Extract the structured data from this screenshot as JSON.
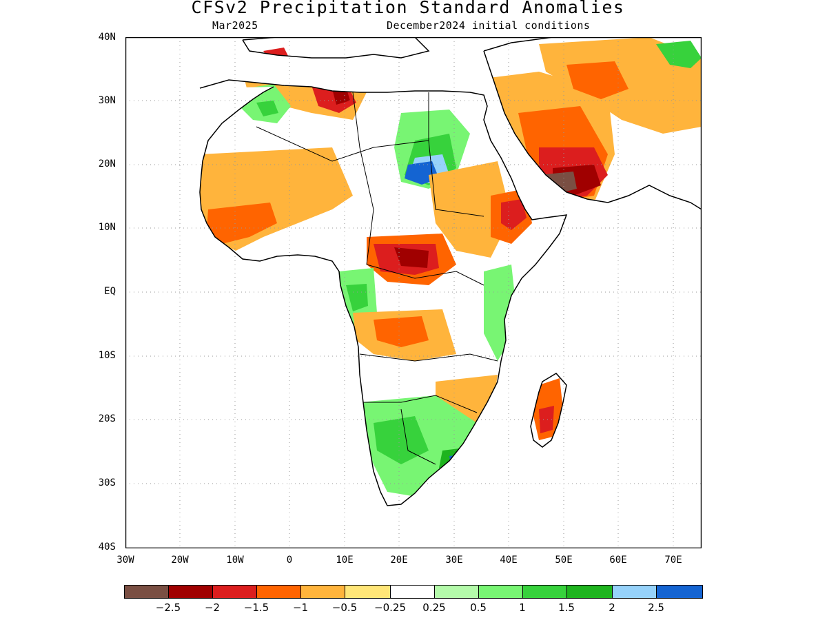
{
  "title": "CFSv2 Precipitation Standard Anomalies",
  "valid_month": "Mar2025",
  "init_label": "December2024 initial conditions",
  "lat_labels": [
    "40N",
    "30N",
    "20N",
    "10N",
    "EQ",
    "10S",
    "20S",
    "30S",
    "40S"
  ],
  "lon_labels": [
    "30W",
    "20W",
    "10W",
    "0",
    "10E",
    "20E",
    "30E",
    "40E",
    "50E",
    "60E",
    "70E"
  ],
  "colorbar": {
    "colors": [
      "#7a4f43",
      "#a00000",
      "#dc1e1e",
      "#ff6400",
      "#ffb43c",
      "#ffe678",
      "#ffffff",
      "#b4faaa",
      "#78f573",
      "#37d23c",
      "#1eb41e",
      "#96d2fa",
      "#1464d2"
    ],
    "labels": [
      "-2.5",
      "-2",
      "-1.5",
      "-1",
      "-0.5",
      "-0.25",
      "0.25",
      "0.5",
      "1",
      "1.5",
      "2",
      "2.5"
    ]
  },
  "map_extent": {
    "lon": [
      -30,
      75
    ],
    "lat": [
      -40,
      40
    ]
  }
}
